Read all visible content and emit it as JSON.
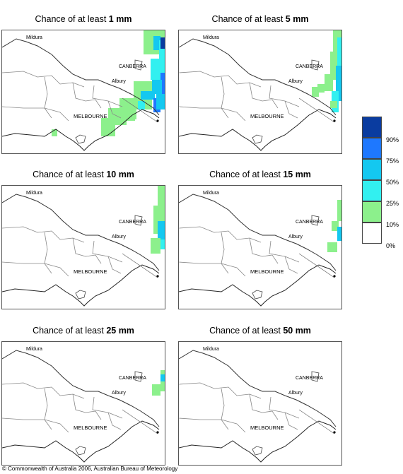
{
  "panels": [
    {
      "title_prefix": "Chance of at least ",
      "amount": "1 mm",
      "level": 0
    },
    {
      "title_prefix": "Chance of at least ",
      "amount": "5 mm",
      "level": 1
    },
    {
      "title_prefix": "Chance of at least ",
      "amount": "10 mm",
      "level": 2
    },
    {
      "title_prefix": "Chance of at least ",
      "amount": "15 mm",
      "level": 3
    },
    {
      "title_prefix": "Chance of at least ",
      "amount": "25 mm",
      "level": 4
    },
    {
      "title_prefix": "Chance of at least ",
      "amount": "50 mm",
      "level": 5
    }
  ],
  "cities": {
    "mildura": "Mildura",
    "canberra": "CANBERRA",
    "albury": "Albury",
    "melbourne": "MELBOURNE"
  },
  "legend": {
    "labels": [
      "90%",
      "75%",
      "50%",
      "25%",
      "10%",
      "0%"
    ],
    "colors": [
      "#0a3ca0",
      "#1e78ff",
      "#14c8f0",
      "#32f0f0",
      "#8cf08c",
      "#ffffff"
    ]
  },
  "footer": "© Commonwealth of Australia 2006, Australian Bureau of Meteorology"
}
